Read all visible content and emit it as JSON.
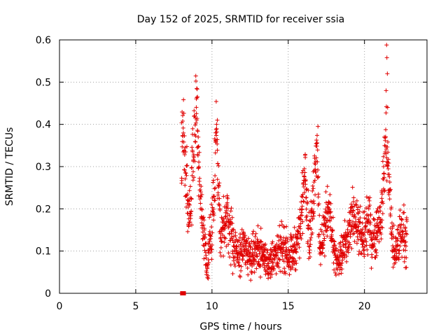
{
  "chart_data": {
    "type": "scatter",
    "title": "Day 152 of 2025, SRMTID for receiver ssia",
    "xlabel": "GPS time / hours",
    "ylabel": "SRMTID / TECUs",
    "xlim": [
      0,
      24.1
    ],
    "ylim": [
      0,
      0.6
    ],
    "x_ticks": [
      0,
      5,
      10,
      15,
      20
    ],
    "x_tick_labels": [
      "0",
      "5",
      "10",
      "15",
      "20"
    ],
    "y_ticks": [
      0,
      0.1,
      0.2,
      0.3,
      0.4,
      0.5,
      0.6
    ],
    "y_tick_labels": [
      "0",
      "0.1",
      "0.2",
      "0.3",
      "0.4",
      "0.5",
      "0.6"
    ],
    "grid": true,
    "marker_color": "#e00000",
    "marker_symbol": "plus",
    "special_points": [
      {
        "x": 8.05,
        "y": 0.0,
        "symbol": "square"
      },
      {
        "x": 8.15,
        "y": 0.0,
        "symbol": "square"
      }
    ],
    "series": [
      {
        "name": "SRMTID",
        "envelope": [
          [
            8.0,
            0.32,
            0.08
          ],
          [
            8.1,
            0.4,
            0.07
          ],
          [
            8.3,
            0.28,
            0.08
          ],
          [
            8.5,
            0.16,
            0.05
          ],
          [
            8.7,
            0.3,
            0.09
          ],
          [
            8.9,
            0.42,
            0.07
          ],
          [
            9.0,
            0.45,
            0.06
          ],
          [
            9.1,
            0.34,
            0.07
          ],
          [
            9.3,
            0.2,
            0.06
          ],
          [
            9.5,
            0.12,
            0.05
          ],
          [
            9.6,
            0.08,
            0.04
          ],
          [
            9.7,
            0.06,
            0.03
          ],
          [
            9.8,
            0.12,
            0.05
          ],
          [
            10.0,
            0.14,
            0.05
          ],
          [
            10.2,
            0.3,
            0.09
          ],
          [
            10.3,
            0.39,
            0.06
          ],
          [
            10.45,
            0.24,
            0.07
          ],
          [
            10.6,
            0.13,
            0.05
          ],
          [
            10.8,
            0.15,
            0.05
          ],
          [
            11.0,
            0.19,
            0.05
          ],
          [
            11.2,
            0.14,
            0.05
          ],
          [
            11.5,
            0.1,
            0.04
          ],
          [
            11.8,
            0.09,
            0.04
          ],
          [
            12.0,
            0.11,
            0.04
          ],
          [
            12.3,
            0.1,
            0.04
          ],
          [
            12.6,
            0.09,
            0.04
          ],
          [
            12.9,
            0.11,
            0.04
          ],
          [
            13.2,
            0.1,
            0.04
          ],
          [
            13.5,
            0.08,
            0.04
          ],
          [
            13.8,
            0.07,
            0.03
          ],
          [
            14.0,
            0.09,
            0.04
          ],
          [
            14.3,
            0.08,
            0.04
          ],
          [
            14.6,
            0.12,
            0.05
          ],
          [
            14.9,
            0.1,
            0.04
          ],
          [
            15.2,
            0.09,
            0.04
          ],
          [
            15.5,
            0.11,
            0.04
          ],
          [
            15.8,
            0.16,
            0.05
          ],
          [
            16.0,
            0.24,
            0.06
          ],
          [
            16.1,
            0.32,
            0.05
          ],
          [
            16.25,
            0.2,
            0.06
          ],
          [
            16.4,
            0.12,
            0.05
          ],
          [
            16.6,
            0.2,
            0.06
          ],
          [
            16.8,
            0.33,
            0.06
          ],
          [
            16.9,
            0.36,
            0.05
          ],
          [
            17.0,
            0.2,
            0.08
          ],
          [
            17.1,
            0.08,
            0.04
          ],
          [
            17.3,
            0.14,
            0.05
          ],
          [
            17.5,
            0.18,
            0.05
          ],
          [
            17.7,
            0.21,
            0.04
          ],
          [
            17.9,
            0.12,
            0.05
          ],
          [
            18.1,
            0.08,
            0.04
          ],
          [
            18.3,
            0.07,
            0.03
          ],
          [
            18.5,
            0.09,
            0.04
          ],
          [
            18.7,
            0.11,
            0.04
          ],
          [
            18.9,
            0.12,
            0.04
          ],
          [
            19.1,
            0.16,
            0.05
          ],
          [
            19.3,
            0.2,
            0.05
          ],
          [
            19.5,
            0.16,
            0.05
          ],
          [
            19.7,
            0.14,
            0.05
          ],
          [
            19.9,
            0.12,
            0.05
          ],
          [
            20.1,
            0.15,
            0.05
          ],
          [
            20.3,
            0.17,
            0.05
          ],
          [
            20.5,
            0.13,
            0.05
          ],
          [
            20.7,
            0.14,
            0.05
          ],
          [
            20.9,
            0.16,
            0.05
          ],
          [
            21.1,
            0.18,
            0.05
          ],
          [
            21.3,
            0.3,
            0.06
          ],
          [
            21.4,
            0.38,
            0.08
          ],
          [
            21.5,
            0.33,
            0.06
          ],
          [
            21.65,
            0.24,
            0.05
          ],
          [
            21.8,
            0.13,
            0.05
          ],
          [
            22.0,
            0.08,
            0.04
          ],
          [
            22.2,
            0.12,
            0.05
          ],
          [
            22.4,
            0.15,
            0.05
          ],
          [
            22.6,
            0.14,
            0.05
          ],
          [
            22.8,
            0.12,
            0.05
          ]
        ],
        "spikes": [
          {
            "x": 9.0,
            "y": 0.485
          },
          {
            "x": 9.05,
            "y": 0.465
          },
          {
            "x": 16.95,
            "y": 0.395
          },
          {
            "x": 10.35,
            "y": 0.41
          },
          {
            "x": 21.45,
            "y": 0.588
          },
          {
            "x": 21.47,
            "y": 0.558
          },
          {
            "x": 21.5,
            "y": 0.52
          },
          {
            "x": 21.42,
            "y": 0.48
          },
          {
            "x": 21.52,
            "y": 0.44
          },
          {
            "x": 9.75,
            "y": 0.035
          },
          {
            "x": 13.85,
            "y": 0.038
          }
        ]
      }
    ]
  }
}
